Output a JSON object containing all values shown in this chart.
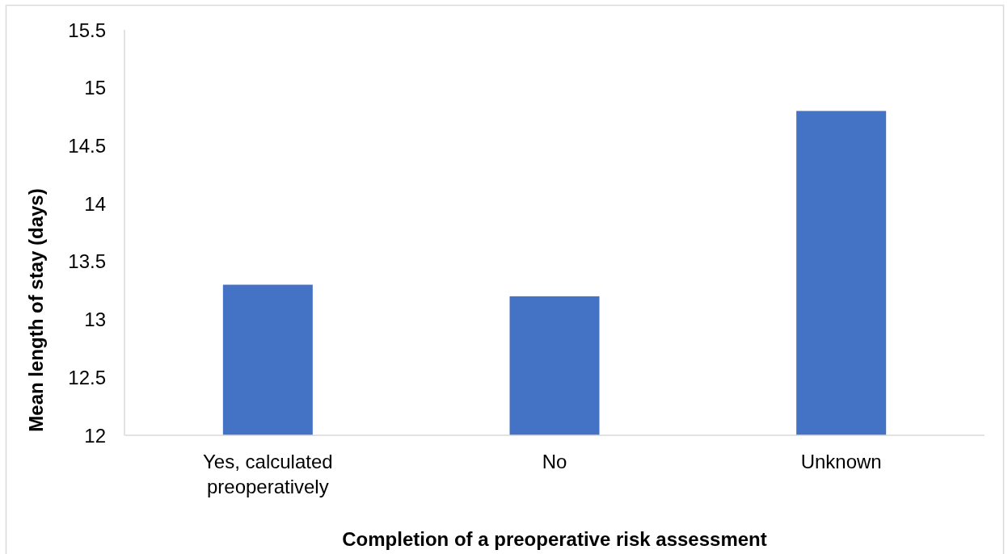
{
  "chart_data": {
    "type": "bar",
    "xlabel": "Completion of a preoperative risk assessment",
    "ylabel": "Mean length of stay (days)",
    "categories": [
      "Yes, calculated preoperatively",
      "No",
      "Unknown"
    ],
    "values": [
      13.3,
      13.2,
      14.8
    ],
    "color": "#4472c4",
    "ylim": [
      12,
      15.5
    ],
    "yticks": [
      12,
      12.5,
      13,
      13.5,
      14,
      14.5,
      15,
      15.5
    ]
  }
}
